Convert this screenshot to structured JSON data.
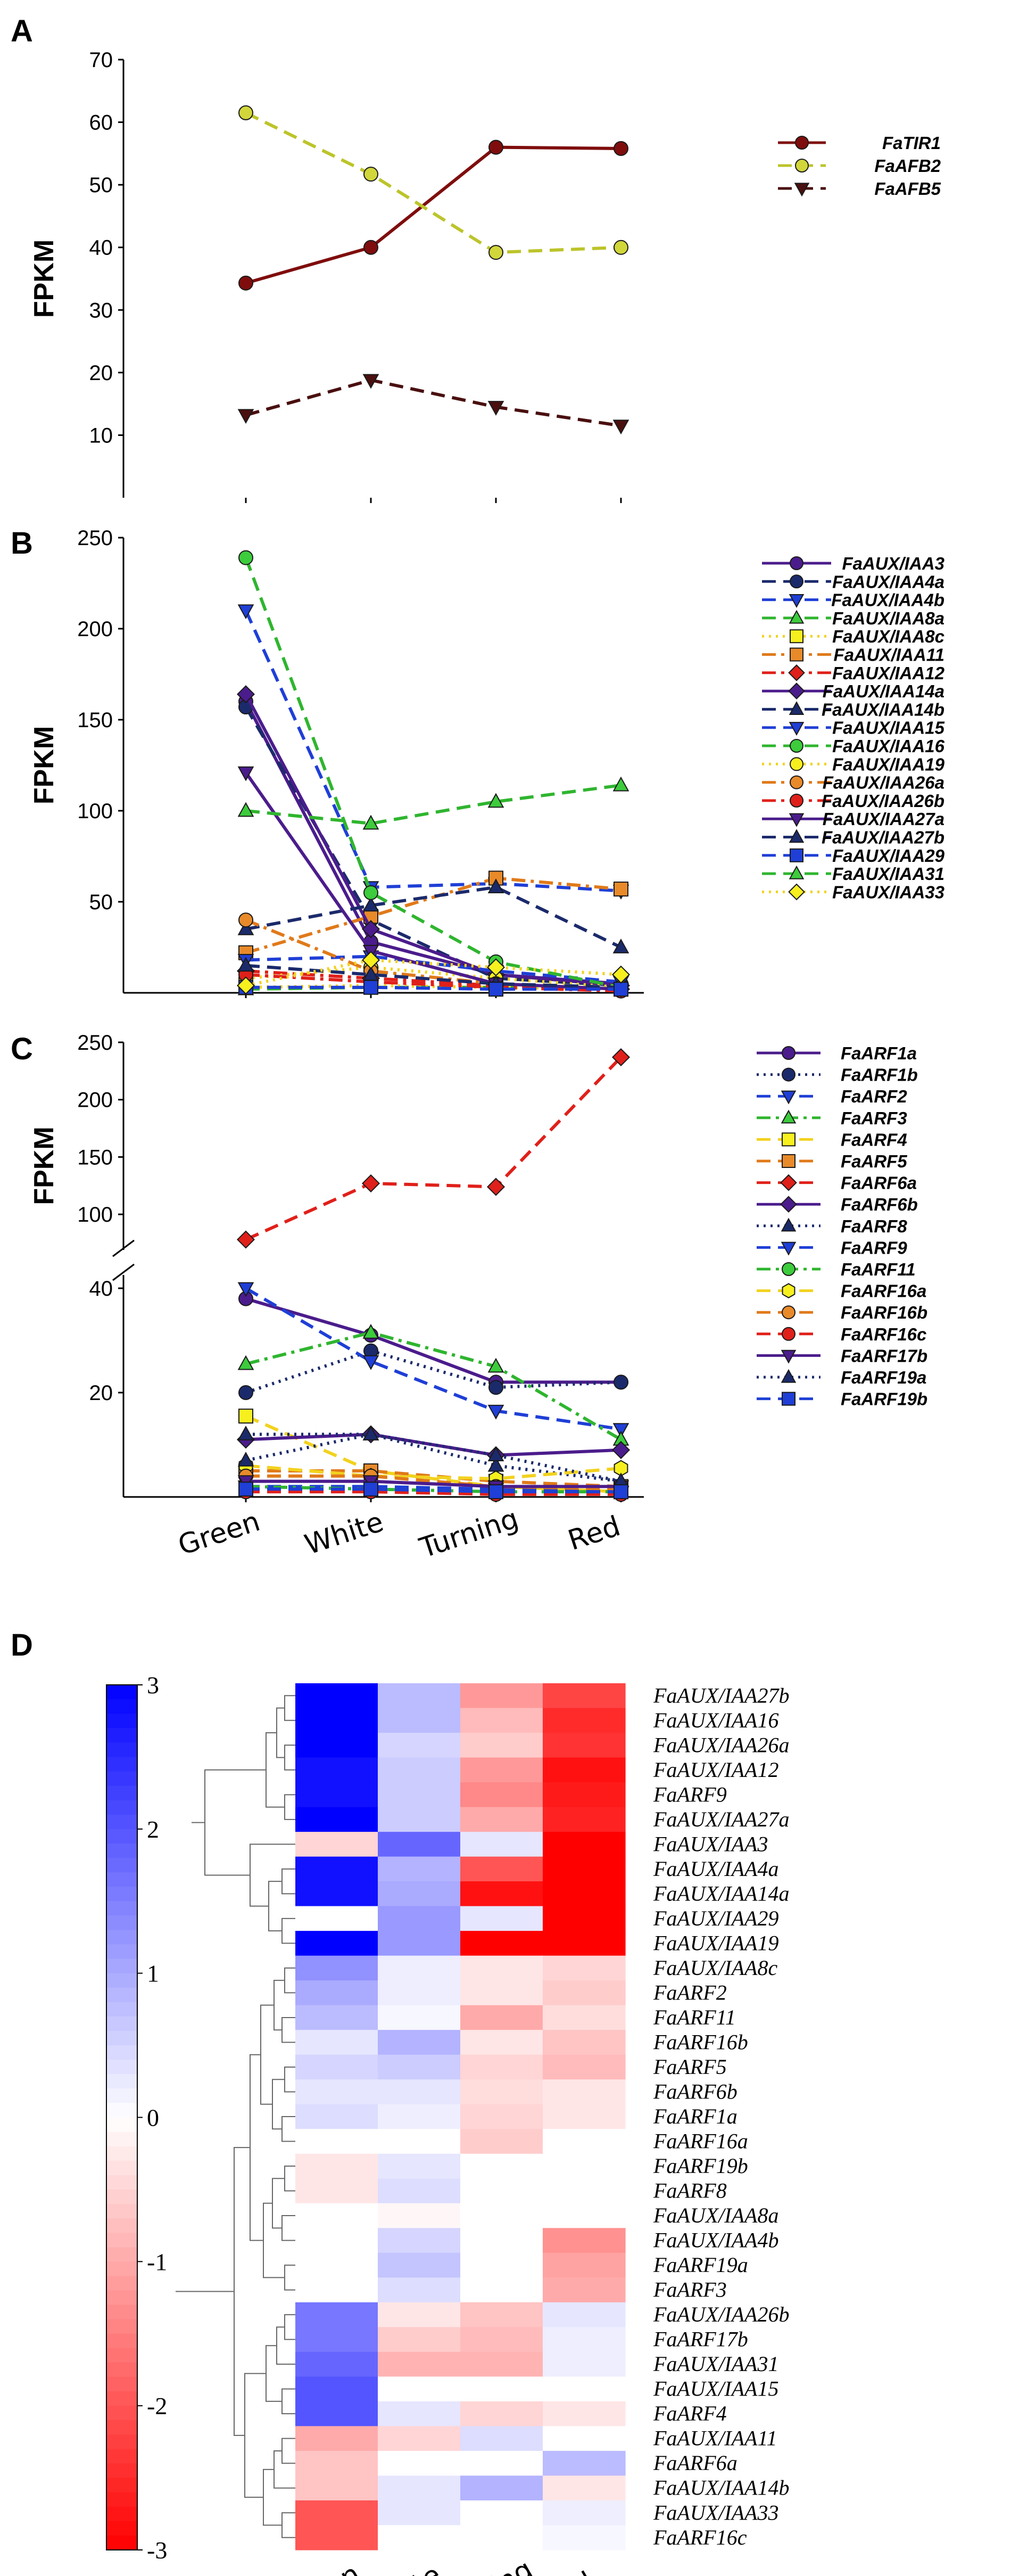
{
  "chart_data": [
    {
      "panel": "A",
      "type": "line",
      "ylabel": "FPKM",
      "ylim": [
        0,
        70
      ],
      "yticks": [
        10,
        20,
        30,
        40,
        50,
        60,
        70
      ],
      "categories": [
        "Green",
        "White",
        "Turning",
        "Red"
      ],
      "series": [
        {
          "name": "FaTIR1",
          "values": [
            34.3,
            40.0,
            56.0,
            55.8
          ],
          "color": "#7f0d0d",
          "dash": "solid",
          "marker": "circle",
          "fill": "#7f0d0d"
        },
        {
          "name": "FaAFB2",
          "values": [
            61.5,
            51.7,
            39.2,
            40.0
          ],
          "color": "#bcc42a",
          "dash": "long",
          "marker": "circle",
          "fill": "#d1d63a"
        },
        {
          "name": "FaAFB5",
          "values": [
            13.2,
            18.8,
            14.5,
            11.5
          ],
          "color": "#4a0f0f",
          "dash": "long",
          "marker": "triangle-down",
          "fill": "#4a0f0f"
        }
      ]
    },
    {
      "panel": "B",
      "type": "line",
      "ylabel": "FPKM",
      "ylim": [
        0,
        250
      ],
      "yticks": [
        50,
        100,
        150,
        200,
        250
      ],
      "categories": [
        "Green",
        "White",
        "Turning",
        "Red"
      ],
      "series": [
        {
          "name": "FaAUX/IAA3",
          "values": [
            160,
            28,
            10,
            5
          ],
          "color": "#4b1c8c",
          "dash": "solid",
          "marker": "circle",
          "fill": "#4b1c8c"
        },
        {
          "name": "FaAUX/IAA4a",
          "values": [
            157,
            40,
            8,
            4
          ],
          "color": "#1b2a6b",
          "dash": "long",
          "marker": "circle",
          "fill": "#1b2a6b"
        },
        {
          "name": "FaAUX/IAA4b",
          "values": [
            210,
            58,
            60,
            56
          ],
          "color": "#1f3fd6",
          "dash": "long",
          "marker": "triangle-down",
          "fill": "#1f3fd6"
        },
        {
          "name": "FaAUX/IAA8a",
          "values": [
            2,
            3,
            3,
            3
          ],
          "color": "#2fb52f",
          "dash": "long",
          "marker": "triangle",
          "fill": "#3ccc3c"
        },
        {
          "name": "FaAUX/IAA8c",
          "values": [
            3,
            4,
            3,
            2
          ],
          "color": "#f2d21e",
          "dash": "dot",
          "marker": "square",
          "fill": "#f7f01e"
        },
        {
          "name": "FaAUX/IAA11",
          "values": [
            22,
            42,
            63,
            57
          ],
          "color": "#e07a1a",
          "dash": "dashdot",
          "marker": "square",
          "fill": "#e88a2a"
        },
        {
          "name": "FaAUX/IAA12",
          "values": [
            12,
            8,
            4,
            2
          ],
          "color": "#e0201a",
          "dash": "dashdot",
          "marker": "diamond",
          "fill": "#e0201a"
        },
        {
          "name": "FaAUX/IAA14a",
          "values": [
            164,
            35,
            10,
            4
          ],
          "color": "#4b1c8c",
          "dash": "solid",
          "marker": "diamond",
          "fill": "#4b1c8c"
        },
        {
          "name": "FaAUX/IAA14b",
          "values": [
            35,
            48,
            58,
            25
          ],
          "color": "#1b2a6b",
          "dash": "long",
          "marker": "triangle",
          "fill": "#1b2a6b"
        },
        {
          "name": "FaAUX/IAA15",
          "values": [
            18,
            20,
            12,
            6
          ],
          "color": "#1f3fd6",
          "dash": "long",
          "marker": "triangle-down",
          "fill": "#1f3fd6"
        },
        {
          "name": "FaAUX/IAA16",
          "values": [
            239,
            55,
            17,
            3
          ],
          "color": "#2fb52f",
          "dash": "long",
          "marker": "circle",
          "fill": "#3ccc3c"
        },
        {
          "name": "FaAUX/IAA19",
          "values": [
            8,
            14,
            8,
            3
          ],
          "color": "#f2d21e",
          "dash": "dot",
          "marker": "circle",
          "fill": "#f7f01e"
        },
        {
          "name": "FaAUX/IAA26a",
          "values": [
            40,
            12,
            5,
            2
          ],
          "color": "#e07a1a",
          "dash": "dashdot",
          "marker": "circle",
          "fill": "#e88a2a"
        },
        {
          "name": "FaAUX/IAA26b",
          "values": [
            10,
            6,
            3,
            1
          ],
          "color": "#e0201a",
          "dash": "dashdot",
          "marker": "circle",
          "fill": "#e0201a"
        },
        {
          "name": "FaAUX/IAA27a",
          "values": [
            121,
            23,
            5,
            2
          ],
          "color": "#4b1c8c",
          "dash": "solid",
          "marker": "triangle-down",
          "fill": "#4b1c8c"
        },
        {
          "name": "FaAUX/IAA27b",
          "values": [
            15,
            10,
            5,
            3
          ],
          "color": "#1b2a6b",
          "dash": "long",
          "marker": "triangle",
          "fill": "#1b2a6b"
        },
        {
          "name": "FaAUX/IAA29",
          "values": [
            3,
            3,
            2,
            2
          ],
          "color": "#1f3fd6",
          "dash": "long",
          "marker": "square",
          "fill": "#1f3fd6"
        },
        {
          "name": "FaAUX/IAA31",
          "values": [
            100,
            93,
            105,
            114
          ],
          "color": "#2fb52f",
          "dash": "long",
          "marker": "triangle",
          "fill": "#3ccc3c"
        },
        {
          "name": "FaAUX/IAA33",
          "values": [
            4,
            18,
            14,
            10
          ],
          "color": "#f2d21e",
          "dash": "dot",
          "marker": "diamond",
          "fill": "#f7f01e"
        }
      ]
    },
    {
      "panel": "C",
      "type": "line",
      "ylabel": "FPKM",
      "broken_axis": true,
      "ylim_lower": [
        0,
        40
      ],
      "ylim_upper": [
        75,
        250
      ],
      "yticks_lower": [
        20,
        40
      ],
      "yticks_upper": [
        100,
        150,
        200,
        250
      ],
      "categories": [
        "Green",
        "White",
        "Turning",
        "Red"
      ],
      "series": [
        {
          "name": "FaARF1a",
          "values": [
            38,
            31,
            22,
            22
          ],
          "color": "#4b1c8c",
          "dash": "solid",
          "marker": "circle",
          "fill": "#4b1c8c"
        },
        {
          "name": "FaARF1b",
          "values": [
            20,
            28,
            21,
            22
          ],
          "color": "#1b2a6b",
          "dash": "dot",
          "marker": "circle",
          "fill": "#1b2a6b"
        },
        {
          "name": "FaARF2",
          "values": [
            40,
            26,
            16.5,
            13
          ],
          "color": "#1f3fd6",
          "dash": "long",
          "marker": "triangle-down",
          "fill": "#1f3fd6"
        },
        {
          "name": "FaARF3",
          "values": [
            25.5,
            31.5,
            25,
            11
          ],
          "color": "#2fb52f",
          "dash": "dashdot",
          "marker": "triangle",
          "fill": "#3ccc3c"
        },
        {
          "name": "FaARF4",
          "values": [
            15.5,
            5,
            2,
            1
          ],
          "color": "#f2d21e",
          "dash": "long",
          "marker": "square",
          "fill": "#f7f01e"
        },
        {
          "name": "FaARF5",
          "values": [
            5,
            5,
            3,
            2
          ],
          "color": "#e07a1a",
          "dash": "long",
          "marker": "square",
          "fill": "#e88a2a"
        },
        {
          "name": "FaARF6a",
          "values": [
            78,
            127,
            124,
            237
          ],
          "color": "#e0201a",
          "dash": "long",
          "marker": "diamond",
          "fill": "#e0201a"
        },
        {
          "name": "FaARF6b",
          "values": [
            11,
            12,
            8,
            9
          ],
          "color": "#4b1c8c",
          "dash": "solid",
          "marker": "diamond",
          "fill": "#4b1c8c"
        },
        {
          "name": "FaARF8",
          "values": [
            12,
            12,
            6,
            3
          ],
          "color": "#1b2a6b",
          "dash": "dot",
          "marker": "triangle",
          "fill": "#1b2a6b"
        },
        {
          "name": "FaARF9",
          "values": [
            2,
            2,
            1.5,
            1
          ],
          "color": "#1f3fd6",
          "dash": "long",
          "marker": "triangle-down",
          "fill": "#1f3fd6"
        },
        {
          "name": "FaARF11",
          "values": [
            2,
            1.5,
            1,
            1
          ],
          "color": "#2fb52f",
          "dash": "dashdot",
          "marker": "circle",
          "fill": "#3ccc3c"
        },
        {
          "name": "FaARF16a",
          "values": [
            6,
            4,
            3.5,
            5.5
          ],
          "color": "#f2d21e",
          "dash": "long",
          "marker": "hexagon",
          "fill": "#f7f01e"
        },
        {
          "name": "FaARF16b",
          "values": [
            4,
            4,
            2,
            1.5
          ],
          "color": "#e07a1a",
          "dash": "long",
          "marker": "circle",
          "fill": "#e88a2a"
        },
        {
          "name": "FaARF16c",
          "values": [
            1,
            1,
            0.5,
            0.5
          ],
          "color": "#e0201a",
          "dash": "long",
          "marker": "circle",
          "fill": "#e0201a"
        },
        {
          "name": "FaARF17b",
          "values": [
            3,
            3,
            2,
            2
          ],
          "color": "#4b1c8c",
          "dash": "solid",
          "marker": "triangle-down",
          "fill": "#4b1c8c"
        },
        {
          "name": "FaARF19a",
          "values": [
            7,
            12,
            8,
            3
          ],
          "color": "#1b2a6b",
          "dash": "dot",
          "marker": "triangle",
          "fill": "#1b2a6b"
        },
        {
          "name": "FaARF19b",
          "values": [
            1.5,
            1.5,
            1,
            1
          ],
          "color": "#1f3fd6",
          "dash": "long",
          "marker": "square",
          "fill": "#1f3fd6"
        }
      ]
    },
    {
      "panel": "D",
      "type": "heatmap",
      "columns": [
        "Green",
        "White",
        "Turning",
        "Red"
      ],
      "scale_ticks": [
        3,
        2,
        1,
        0,
        -1,
        -2,
        -3
      ],
      "scale_range": [
        -3,
        3
      ],
      "rows": [
        {
          "name": "FaAUX/IAA27b",
          "values": [
            3.0,
            0.8,
            -1.2,
            -2.2
          ]
        },
        {
          "name": "FaAUX/IAA16",
          "values": [
            3.0,
            0.8,
            -0.8,
            -2.5
          ]
        },
        {
          "name": "FaAUX/IAA26a",
          "values": [
            3.0,
            0.5,
            -0.6,
            -2.4
          ]
        },
        {
          "name": "FaAUX/IAA12",
          "values": [
            2.8,
            0.6,
            -1.2,
            -2.8
          ]
        },
        {
          "name": "FaARF9",
          "values": [
            2.8,
            0.6,
            -1.4,
            -2.7
          ]
        },
        {
          "name": "FaAUX/IAA27a",
          "values": [
            3.0,
            0.6,
            -1.0,
            -2.6
          ]
        },
        {
          "name": "FaAUX/IAA3",
          "values": [
            -0.5,
            1.8,
            0.3,
            -3.0
          ]
        },
        {
          "name": "FaAUX/IAA4a",
          "values": [
            2.8,
            0.9,
            -2.0,
            -3.0
          ]
        },
        {
          "name": "FaAUX/IAA14a",
          "values": [
            2.8,
            1.0,
            -2.8,
            -3.0
          ]
        },
        {
          "name": "FaAUX/IAA29",
          "values": [
            0.0,
            1.2,
            0.3,
            -3.0
          ]
        },
        {
          "name": "FaAUX/IAA19",
          "values": [
            3.0,
            1.2,
            -3.0,
            -3.0
          ]
        },
        {
          "name": "FaAUX/IAA8c",
          "values": [
            1.3,
            0.2,
            -0.3,
            -0.5
          ]
        },
        {
          "name": "FaARF2",
          "values": [
            1.0,
            0.2,
            -0.3,
            -0.6
          ]
        },
        {
          "name": "FaARF11",
          "values": [
            0.8,
            0.1,
            -1.0,
            -0.4
          ]
        },
        {
          "name": "FaARF16b",
          "values": [
            0.3,
            0.9,
            -0.3,
            -0.7
          ]
        },
        {
          "name": "FaARF5",
          "values": [
            0.5,
            0.6,
            -0.5,
            -0.8
          ]
        },
        {
          "name": "FaARF6b",
          "values": [
            0.3,
            0.3,
            -0.4,
            -0.3
          ]
        },
        {
          "name": "FaARF1a",
          "values": [
            0.4,
            0.2,
            -0.5,
            -0.3
          ]
        },
        {
          "name": "FaARF16a",
          "values": [
            0.0,
            0.0,
            -0.6,
            0.0
          ]
        },
        {
          "name": "FaARF19b",
          "values": [
            -0.3,
            0.3,
            0.0,
            0.0
          ]
        },
        {
          "name": "FaARF8",
          "values": [
            -0.3,
            0.4,
            0.0,
            0.0
          ]
        },
        {
          "name": "FaAUX/IAA8a",
          "values": [
            0.0,
            -0.1,
            0.0,
            0.0
          ]
        },
        {
          "name": "FaAUX/IAA4b",
          "values": [
            0.0,
            0.5,
            0.0,
            -1.3
          ]
        },
        {
          "name": "FaARF19a",
          "values": [
            0.0,
            0.7,
            0.0,
            -1.1
          ]
        },
        {
          "name": "FaARF3",
          "values": [
            0.0,
            0.4,
            0.0,
            -1.0
          ]
        },
        {
          "name": "FaAUX/IAA26b",
          "values": [
            1.6,
            -0.3,
            -0.7,
            0.3
          ]
        },
        {
          "name": "FaARF17b",
          "values": [
            1.6,
            -0.6,
            -0.8,
            0.2
          ]
        },
        {
          "name": "FaAUX/IAA31",
          "values": [
            1.8,
            -0.9,
            -0.9,
            0.2
          ]
        },
        {
          "name": "FaAUX/IAA15",
          "values": [
            2.0,
            0.0,
            0.0,
            0.0
          ]
        },
        {
          "name": "FaARF4",
          "values": [
            2.0,
            0.3,
            -0.5,
            -0.3
          ]
        },
        {
          "name": "FaAUX/IAA11",
          "values": [
            -1.0,
            -0.5,
            0.4,
            0.0
          ]
        },
        {
          "name": "FaARF6a",
          "values": [
            -0.7,
            0.0,
            0.0,
            0.8
          ]
        },
        {
          "name": "FaAUX/IAA14b",
          "values": [
            -0.7,
            0.3,
            0.9,
            -0.3
          ]
        },
        {
          "name": "FaAUX/IAA33",
          "values": [
            -2.0,
            0.3,
            0.0,
            0.2
          ]
        },
        {
          "name": "FaARF16c",
          "values": [
            -2.0,
            0.0,
            0.0,
            0.1
          ]
        }
      ]
    }
  ],
  "panel_labels": [
    "A",
    "B",
    "C",
    "D"
  ]
}
